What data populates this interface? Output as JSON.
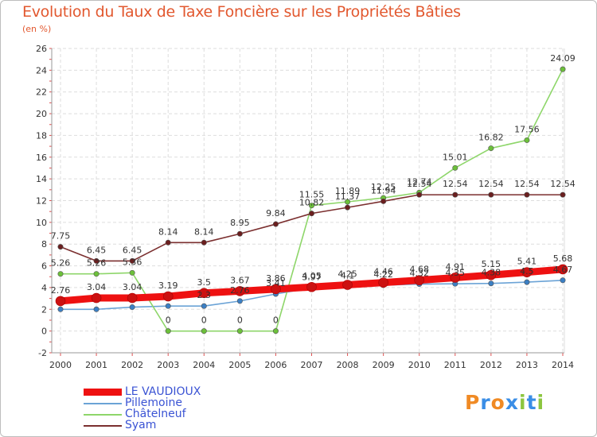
{
  "header": {
    "title": "Evolution du Taux de Taxe Foncière sur les Propriétés Bâties",
    "unit": "(en %)"
  },
  "logo": {
    "letters": [
      "P",
      "r",
      "o",
      "x",
      "i",
      "t",
      "i"
    ],
    "colors": [
      "#f08a24",
      "#3a8ee6",
      "#f08a24",
      "#3a8ee6",
      "#8cc63f",
      "#3a8ee6",
      "#8cc63f"
    ]
  },
  "chart_data": {
    "type": "line",
    "title": "Evolution du Taux de Taxe Foncière sur les Propriétés Bâties",
    "ylabel": "(en %)",
    "xlabel": "",
    "ylim": [
      -2,
      26
    ],
    "yticks": [
      -2,
      0,
      2,
      4,
      6,
      8,
      10,
      12,
      14,
      16,
      18,
      20,
      22,
      24,
      26
    ],
    "categories": [
      "2000",
      "2001",
      "2002",
      "2003",
      "2004",
      "2005",
      "2006",
      "2007",
      "2008",
      "2009",
      "2010",
      "2011",
      "2012",
      "2013",
      "2014"
    ],
    "legend_position": "bottom-left",
    "series": [
      {
        "name": "LE VAUDIOUX",
        "color": "#ee1111",
        "markerColor": "#cc1111",
        "thick": true,
        "values": [
          2.76,
          3.04,
          3.04,
          3.19,
          3.5,
          3.67,
          3.86,
          4.05,
          4.25,
          4.46,
          4.68,
          4.91,
          5.15,
          5.41,
          5.68
        ],
        "labels": [
          "2.76",
          "3.04",
          "3.04",
          "3.19",
          "3.5",
          "3.67",
          "3.86",
          "4.05",
          "4.25",
          "4.46",
          "4.68",
          "4.91",
          "5.15",
          "5.41",
          "5.68"
        ]
      },
      {
        "name": "Pillemoine",
        "color": "#6ba3d6",
        "markerColor": "#3b7fc4",
        "thick": false,
        "values": [
          2.0,
          2.0,
          2.2,
          2.3,
          2.3,
          2.76,
          3.41,
          3.97,
          4.1,
          4.22,
          4.32,
          4.35,
          4.38,
          4.5,
          4.67
        ],
        "labels": [
          "",
          "",
          "",
          "",
          "2.3",
          "2.76",
          "3.41",
          "3.97",
          "4.1",
          "4.22",
          "4.32",
          "4.35",
          "4.38",
          "4.5",
          "4.67"
        ]
      },
      {
        "name": "Châtelneuf",
        "color": "#8ed66a",
        "markerColor": "#6cc03a",
        "thick": false,
        "values": [
          5.26,
          5.26,
          5.36,
          0,
          0,
          0,
          0,
          11.55,
          11.89,
          12.25,
          12.74,
          15.01,
          16.82,
          17.56,
          24.09
        ],
        "labels": [
          "5.26",
          "5.26",
          "5.36",
          "0",
          "0",
          "0",
          "0",
          "11.55",
          "11.89",
          "12.25",
          "12.74",
          "15.01",
          "16.82",
          "17.56",
          "24.09"
        ]
      },
      {
        "name": "Syam",
        "color": "#7b2f2f",
        "markerColor": "#6b1f1f",
        "thick": false,
        "values": [
          7.75,
          6.45,
          6.45,
          8.14,
          8.14,
          8.95,
          9.84,
          10.82,
          11.37,
          11.94,
          12.54,
          12.54,
          12.54,
          12.54,
          12.54
        ],
        "labels": [
          "7.75",
          "6.45",
          "6.45",
          "8.14",
          "8.14",
          "8.95",
          "9.84",
          "10.82",
          "11.37",
          "11.94",
          "12.54",
          "12.54",
          "12.54",
          "12.54",
          "12.54"
        ]
      }
    ]
  }
}
